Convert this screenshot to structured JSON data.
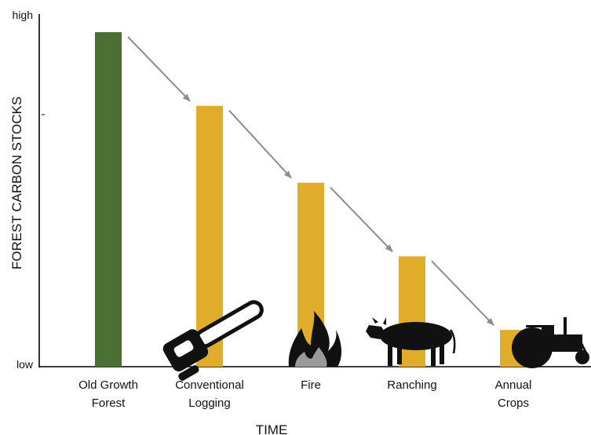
{
  "chart_data": {
    "type": "bar",
    "title": "",
    "xlabel": "TIME",
    "ylabel": "FOREST CARBON STOCKS",
    "y_tick_labels": {
      "high": "high",
      "low": "low"
    },
    "ylim": [
      0,
      100
    ],
    "categories": [
      [
        "Old Growth",
        "Forest"
      ],
      [
        "Conventional",
        "Logging"
      ],
      [
        "Fire"
      ],
      [
        "Ranching"
      ],
      [
        "Annual",
        "Crops"
      ]
    ],
    "values": [
      100,
      78,
      55,
      33,
      11
    ],
    "bar_colors": [
      "#4a7033",
      "#e0ad2b",
      "#e0ad2b",
      "#e0ad2b",
      "#e0ad2b"
    ],
    "arrow_color": "#8c8c8c",
    "icons": [
      "none",
      "chainsaw-icon",
      "fire-icon",
      "cow-icon",
      "tractor-icon"
    ],
    "grid": false,
    "legend": "none"
  }
}
